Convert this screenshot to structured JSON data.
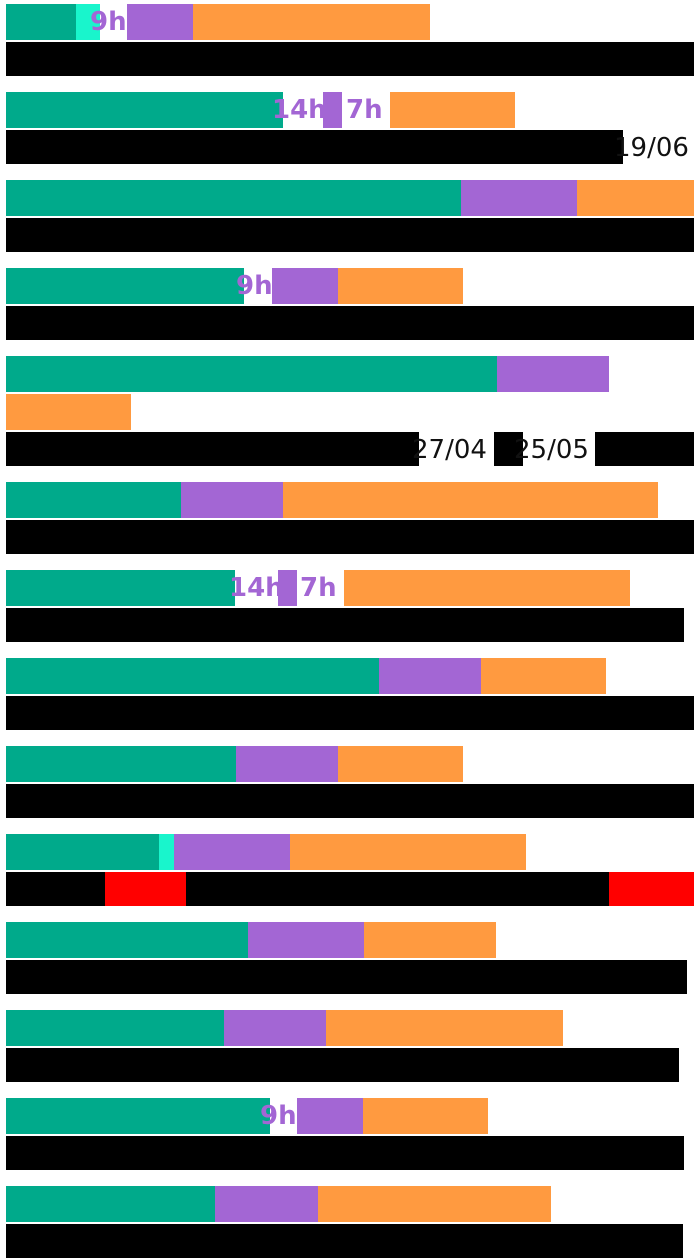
{
  "colors": {
    "teal": "#00aa8b",
    "aqua": "#19f5cc",
    "purple": "#a366d4",
    "orange": "#ff9a40",
    "black": "#000000",
    "red": "#ff0000",
    "label_purple": "#a366d4",
    "label_dark": "#111111"
  },
  "rows": [
    {
      "top": [
        {
          "c": "teal",
          "w": 70
        },
        {
          "c": "aqua",
          "w": 24
        },
        {
          "c": "white",
          "w": 27
        },
        {
          "c": "purple",
          "w": 66
        },
        {
          "c": "orange",
          "w": 237
        }
      ],
      "bottom": [
        {
          "c": "black",
          "w": 688
        }
      ],
      "labels": [
        {
          "text": "9h",
          "color": "label_purple",
          "bold": true,
          "x": 90,
          "line": "top"
        }
      ]
    },
    {
      "top": [
        {
          "c": "teal",
          "w": 277
        },
        {
          "c": "white",
          "w": 40
        },
        {
          "c": "purple",
          "w": 19
        },
        {
          "c": "white",
          "w": 48
        },
        {
          "c": "orange",
          "w": 125
        }
      ],
      "bottom": [
        {
          "c": "black",
          "w": 617
        }
      ],
      "labels": [
        {
          "text": "14h",
          "color": "label_purple",
          "bold": true,
          "x": 272,
          "line": "top"
        },
        {
          "text": "7h",
          "color": "label_purple",
          "bold": true,
          "x": 346,
          "line": "top"
        },
        {
          "text": "19/06",
          "color": "label_dark",
          "bold": false,
          "x": 614,
          "line": "bottom"
        }
      ]
    },
    {
      "top": [
        {
          "c": "teal",
          "w": 455
        },
        {
          "c": "purple",
          "w": 116
        },
        {
          "c": "orange",
          "w": 117
        }
      ],
      "bottom": [
        {
          "c": "black",
          "w": 688
        }
      ],
      "labels": []
    },
    {
      "top": [
        {
          "c": "teal",
          "w": 238
        },
        {
          "c": "white",
          "w": 28
        },
        {
          "c": "purple",
          "w": 66
        },
        {
          "c": "orange",
          "w": 125
        }
      ],
      "bottom": [
        {
          "c": "black",
          "w": 688
        }
      ],
      "labels": [
        {
          "text": "9h",
          "color": "label_purple",
          "bold": true,
          "x": 236,
          "line": "top"
        }
      ]
    },
    {
      "top": [
        {
          "c": "teal",
          "w": 491
        },
        {
          "c": "purple",
          "w": 112
        }
      ],
      "middle": [
        {
          "c": "orange",
          "w": 125
        }
      ],
      "bottom": [
        {
          "c": "black",
          "w": 413
        },
        {
          "c": "white",
          "w": 75
        },
        {
          "c": "black",
          "w": 29
        },
        {
          "c": "white",
          "w": 72
        },
        {
          "c": "black",
          "w": 99
        }
      ],
      "labels": [
        {
          "text": "27/04",
          "color": "label_dark",
          "bold": false,
          "x": 412,
          "line": "bottom"
        },
        {
          "text": "25/05",
          "color": "label_dark",
          "bold": false,
          "x": 514,
          "line": "bottom"
        }
      ]
    },
    {
      "top": [
        {
          "c": "teal",
          "w": 175
        },
        {
          "c": "purple",
          "w": 102
        },
        {
          "c": "orange",
          "w": 375
        }
      ],
      "bottom": [
        {
          "c": "black",
          "w": 688
        }
      ],
      "labels": []
    },
    {
      "top": [
        {
          "c": "teal",
          "w": 229
        },
        {
          "c": "white",
          "w": 43
        },
        {
          "c": "purple",
          "w": 19
        },
        {
          "c": "white",
          "w": 47
        },
        {
          "c": "orange",
          "w": 286
        }
      ],
      "bottom": [
        {
          "c": "black",
          "w": 678
        }
      ],
      "labels": [
        {
          "text": "14h",
          "color": "label_purple",
          "bold": true,
          "x": 229,
          "line": "top"
        },
        {
          "text": "7h",
          "color": "label_purple",
          "bold": true,
          "x": 300,
          "line": "top"
        }
      ]
    },
    {
      "top": [
        {
          "c": "teal",
          "w": 373
        },
        {
          "c": "purple",
          "w": 102
        },
        {
          "c": "orange",
          "w": 125
        }
      ],
      "bottom": [
        {
          "c": "black",
          "w": 688
        }
      ],
      "labels": []
    },
    {
      "top": [
        {
          "c": "teal",
          "w": 230
        },
        {
          "c": "purple",
          "w": 102
        },
        {
          "c": "orange",
          "w": 125
        }
      ],
      "bottom": [
        {
          "c": "black",
          "w": 688
        }
      ],
      "labels": []
    },
    {
      "top": [
        {
          "c": "teal",
          "w": 153
        },
        {
          "c": "aqua",
          "w": 15
        },
        {
          "c": "purple",
          "w": 116
        },
        {
          "c": "orange",
          "w": 236
        }
      ],
      "bottom": [
        {
          "c": "black",
          "w": 99
        },
        {
          "c": "red",
          "w": 81
        },
        {
          "c": "black",
          "w": 423
        },
        {
          "c": "red",
          "w": 85
        }
      ],
      "labels": []
    },
    {
      "top": [
        {
          "c": "teal",
          "w": 242
        },
        {
          "c": "purple",
          "w": 116
        },
        {
          "c": "orange",
          "w": 132
        }
      ],
      "bottom": [
        {
          "c": "black",
          "w": 681
        }
      ],
      "labels": []
    },
    {
      "top": [
        {
          "c": "teal",
          "w": 218
        },
        {
          "c": "purple",
          "w": 102
        },
        {
          "c": "orange",
          "w": 237
        }
      ],
      "bottom": [
        {
          "c": "black",
          "w": 673
        }
      ],
      "labels": []
    },
    {
      "top": [
        {
          "c": "teal",
          "w": 264
        },
        {
          "c": "white",
          "w": 27
        },
        {
          "c": "purple",
          "w": 66
        },
        {
          "c": "orange",
          "w": 125
        }
      ],
      "bottom": [
        {
          "c": "black",
          "w": 678
        }
      ],
      "labels": [
        {
          "text": "9h",
          "color": "label_purple",
          "bold": true,
          "x": 260,
          "line": "top"
        }
      ]
    },
    {
      "top": [
        {
          "c": "teal",
          "w": 209
        },
        {
          "c": "purple",
          "w": 103
        },
        {
          "c": "orange",
          "w": 233
        }
      ],
      "bottom": [
        {
          "c": "black",
          "w": 677
        }
      ],
      "labels": []
    }
  ]
}
